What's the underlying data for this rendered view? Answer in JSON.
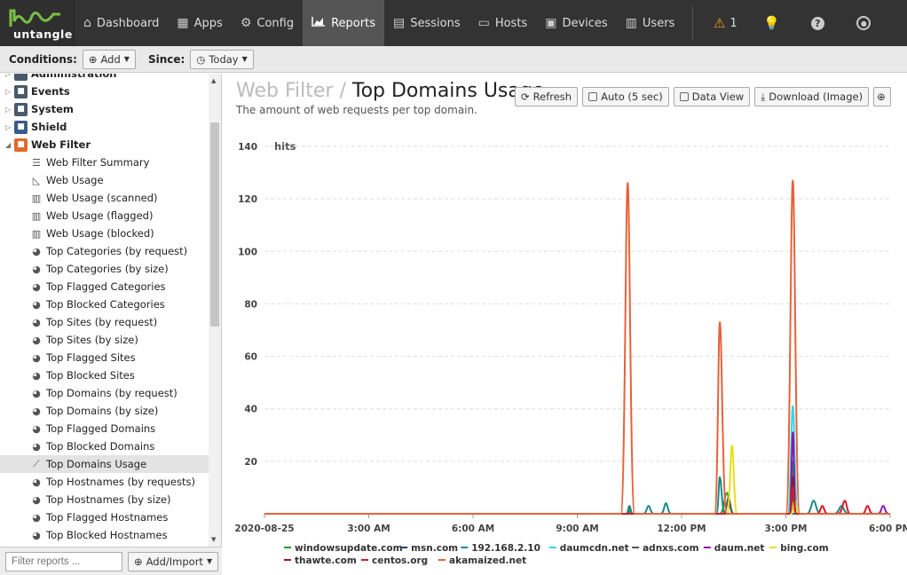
{
  "brand": {
    "name": "untangle"
  },
  "nav": [
    {
      "label": "Dashboard",
      "icon": "home-icon"
    },
    {
      "label": "Apps",
      "icon": "grid-icon"
    },
    {
      "label": "Config",
      "icon": "gear-icon"
    },
    {
      "label": "Reports",
      "icon": "area-chart-icon"
    },
    {
      "label": "Sessions",
      "icon": "sessions-icon"
    },
    {
      "label": "Hosts",
      "icon": "hosts-icon"
    },
    {
      "label": "Devices",
      "icon": "devices-icon"
    },
    {
      "label": "Users",
      "icon": "users-icon"
    }
  ],
  "topbar_right": {
    "alert_count": "1"
  },
  "conditions": {
    "label": "Conditions:",
    "add_label": "Add",
    "since_label": "Since:",
    "since_value": "Today"
  },
  "sidebar": {
    "partial_top": "Administration",
    "categories": [
      {
        "label": "Events",
        "color": "#4a5a6a"
      },
      {
        "label": "System",
        "color": "#4a5a6a"
      },
      {
        "label": "Shield",
        "color": "#3a5a8a"
      },
      {
        "label": "Web Filter",
        "color": "#e06a2a"
      }
    ],
    "items": [
      {
        "label": "Web Filter Summary",
        "icon": "list-icon"
      },
      {
        "label": "Web Usage",
        "icon": "area-chart-icon"
      },
      {
        "label": "Web Usage (scanned)",
        "icon": "bar-chart-icon"
      },
      {
        "label": "Web Usage (flagged)",
        "icon": "bar-chart-icon"
      },
      {
        "label": "Web Usage (blocked)",
        "icon": "bar-chart-icon"
      },
      {
        "label": "Top Categories (by request)",
        "icon": "pie-chart-icon"
      },
      {
        "label": "Top Categories (by size)",
        "icon": "pie-chart-icon"
      },
      {
        "label": "Top Flagged Categories",
        "icon": "pie-chart-icon"
      },
      {
        "label": "Top Blocked Categories",
        "icon": "pie-chart-icon"
      },
      {
        "label": "Top Sites (by request)",
        "icon": "pie-chart-icon"
      },
      {
        "label": "Top Sites (by size)",
        "icon": "pie-chart-icon"
      },
      {
        "label": "Top Flagged Sites",
        "icon": "pie-chart-icon"
      },
      {
        "label": "Top Blocked Sites",
        "icon": "pie-chart-icon"
      },
      {
        "label": "Top Domains (by request)",
        "icon": "pie-chart-icon"
      },
      {
        "label": "Top Domains (by size)",
        "icon": "pie-chart-icon"
      },
      {
        "label": "Top Flagged Domains",
        "icon": "pie-chart-icon"
      },
      {
        "label": "Top Blocked Domains",
        "icon": "pie-chart-icon"
      },
      {
        "label": "Top Domains Usage",
        "icon": "line-chart-icon",
        "selected": true
      },
      {
        "label": "Top Hostnames (by requests)",
        "icon": "pie-chart-icon"
      },
      {
        "label": "Top Hostnames (by size)",
        "icon": "pie-chart-icon"
      },
      {
        "label": "Top Flagged Hostnames",
        "icon": "pie-chart-icon"
      },
      {
        "label": "Top Blocked Hostnames",
        "icon": "pie-chart-icon"
      }
    ],
    "filter_placeholder": "Filter reports ...",
    "add_import_label": "Add/Import"
  },
  "report": {
    "category": "Web Filter",
    "separator": "/",
    "title": "Top Domains Usage",
    "description": "The amount of web requests per top domain.",
    "buttons": {
      "refresh": "Refresh",
      "auto": "Auto (5 sec)",
      "data_view": "Data View",
      "download": "Download (Image)"
    }
  },
  "chart_data": {
    "type": "area",
    "ylabel": "hits",
    "ylim": [
      0,
      140
    ],
    "yticks": [
      20,
      40,
      60,
      80,
      100,
      120,
      140
    ],
    "xticks": [
      "2020-08-25",
      "3:00 AM",
      "6:00 AM",
      "9:00 AM",
      "12:00 PM",
      "3:00 PM",
      "6:00 PM"
    ],
    "x_unit": "hours since midnight",
    "xlim": [
      0,
      18
    ],
    "series": [
      {
        "name": "windowsupdate.com",
        "color": "#2a9d2a",
        "points": [
          [
            10.45,
            0
          ],
          [
            10.5,
            2
          ],
          [
            10.55,
            0
          ],
          [
            13.1,
            0
          ],
          [
            13.3,
            8
          ],
          [
            13.5,
            0
          ],
          [
            15.1,
            0
          ],
          [
            15.2,
            20
          ],
          [
            15.3,
            0
          ]
        ]
      },
      {
        "name": "msn.com",
        "color": "#2a3a7a",
        "points": [
          [
            15.1,
            0
          ],
          [
            15.2,
            8
          ],
          [
            15.3,
            0
          ]
        ]
      },
      {
        "name": "192.168.2.10",
        "color": "#1a8a8a",
        "points": [
          [
            10.4,
            0
          ],
          [
            10.5,
            3
          ],
          [
            10.6,
            0
          ],
          [
            10.9,
            0
          ],
          [
            11.05,
            3
          ],
          [
            11.2,
            0
          ],
          [
            11.4,
            0
          ],
          [
            11.55,
            4
          ],
          [
            11.7,
            0
          ],
          [
            13.0,
            0
          ],
          [
            13.1,
            14
          ],
          [
            13.25,
            0
          ],
          [
            15.6,
            0
          ],
          [
            15.8,
            5
          ],
          [
            16.0,
            0
          ],
          [
            16.4,
            0
          ],
          [
            16.6,
            3
          ],
          [
            16.8,
            0
          ]
        ]
      },
      {
        "name": "daumcdn.net",
        "color": "#33d6e6",
        "points": [
          [
            15.05,
            0
          ],
          [
            15.2,
            41
          ],
          [
            15.35,
            0
          ]
        ]
      },
      {
        "name": "adnxs.com",
        "color": "#555555",
        "points": [
          [
            13.2,
            0
          ],
          [
            13.35,
            6
          ],
          [
            13.5,
            0
          ],
          [
            15.1,
            0
          ],
          [
            15.2,
            6
          ],
          [
            15.3,
            0
          ]
        ]
      },
      {
        "name": "daum.net",
        "color": "#8a1aaa",
        "points": [
          [
            15.1,
            0
          ],
          [
            15.2,
            31
          ],
          [
            15.3,
            0
          ],
          [
            17.65,
            0
          ],
          [
            17.8,
            3
          ],
          [
            17.95,
            0
          ]
        ]
      },
      {
        "name": "bing.com",
        "color": "#e6e01a",
        "points": [
          [
            13.3,
            0
          ],
          [
            13.45,
            26
          ],
          [
            13.6,
            0
          ],
          [
            15.15,
            0
          ],
          [
            15.25,
            5
          ],
          [
            15.35,
            0
          ]
        ]
      },
      {
        "name": "thawte.com",
        "color": "#8a1a3a",
        "points": [
          [
            15.1,
            0
          ],
          [
            15.2,
            14
          ],
          [
            15.3,
            0
          ]
        ]
      },
      {
        "name": "centos.org",
        "color": "#d41a2a",
        "points": [
          [
            15.1,
            0
          ],
          [
            15.2,
            10
          ],
          [
            15.3,
            0
          ],
          [
            15.9,
            0
          ],
          [
            16.05,
            3
          ],
          [
            16.2,
            0
          ],
          [
            16.5,
            0
          ],
          [
            16.7,
            5
          ],
          [
            16.85,
            0
          ],
          [
            17.2,
            0
          ],
          [
            17.35,
            3
          ],
          [
            17.5,
            0
          ]
        ]
      },
      {
        "name": "akamaized.net",
        "color": "#e6623a",
        "points": [
          [
            10.25,
            0
          ],
          [
            10.45,
            126
          ],
          [
            10.65,
            0
          ],
          [
            12.95,
            0
          ],
          [
            13.1,
            73
          ],
          [
            13.3,
            0
          ],
          [
            15.0,
            0
          ],
          [
            15.2,
            127
          ],
          [
            15.4,
            0
          ]
        ]
      }
    ]
  }
}
